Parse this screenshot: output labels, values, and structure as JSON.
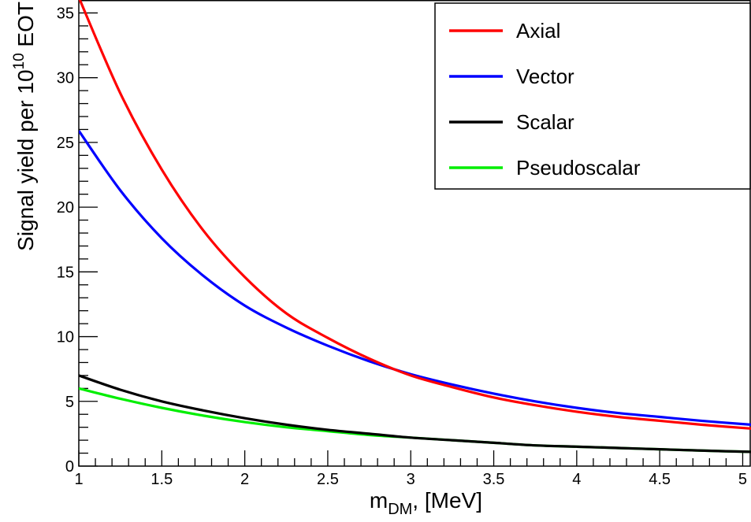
{
  "chart_data": {
    "type": "line",
    "title": "",
    "xlabel_main": "m",
    "xlabel_sub": "DM",
    "xlabel_rest": ", [MeV]",
    "ylabel_main": "Signal yield per 10",
    "ylabel_sup": "10",
    "ylabel_rest": " EOT",
    "xlim": [
      1,
      5.05
    ],
    "ylim": [
      0,
      36
    ],
    "x_ticks": [
      1,
      1.5,
      2,
      2.5,
      3,
      3.5,
      4,
      4.5,
      5
    ],
    "x_tick_labels": [
      "1",
      "1.5",
      "2",
      "2.5",
      "3",
      "3.5",
      "4",
      "4.5",
      "5"
    ],
    "y_ticks": [
      0,
      5,
      10,
      15,
      20,
      25,
      30,
      35
    ],
    "y_tick_labels": [
      "0",
      "5",
      "10",
      "15",
      "20",
      "25",
      "30",
      "35"
    ],
    "grid": false,
    "legend_position": "top-right",
    "x": [
      1.0,
      1.25,
      1.5,
      1.75,
      2.0,
      2.25,
      2.5,
      2.75,
      3.0,
      3.25,
      3.5,
      3.75,
      4.0,
      4.25,
      4.5,
      4.75,
      5.05
    ],
    "series": [
      {
        "name": "Axial",
        "color": "#ff0000",
        "values": [
          36.2,
          28.8,
          22.9,
          18.2,
          14.6,
          11.8,
          9.9,
          8.3,
          7.0,
          6.1,
          5.3,
          4.7,
          4.2,
          3.8,
          3.5,
          3.2,
          2.9
        ]
      },
      {
        "name": "Vector",
        "color": "#0000ff",
        "values": [
          25.9,
          21.3,
          17.6,
          14.7,
          12.4,
          10.7,
          9.3,
          8.1,
          7.1,
          6.3,
          5.6,
          5.0,
          4.5,
          4.1,
          3.8,
          3.5,
          3.2
        ]
      },
      {
        "name": "Scalar",
        "color": "#000000",
        "values": [
          7.0,
          5.9,
          5.0,
          4.3,
          3.7,
          3.2,
          2.8,
          2.5,
          2.2,
          2.0,
          1.8,
          1.6,
          1.5,
          1.4,
          1.3,
          1.2,
          1.1
        ]
      },
      {
        "name": "Pseudoscalar",
        "color": "#00ee00",
        "values": [
          6.0,
          5.2,
          4.5,
          3.9,
          3.4,
          3.0,
          2.7,
          2.4,
          2.2,
          2.0,
          1.8,
          1.6,
          1.5,
          1.4,
          1.3,
          1.2,
          1.1
        ]
      }
    ]
  }
}
